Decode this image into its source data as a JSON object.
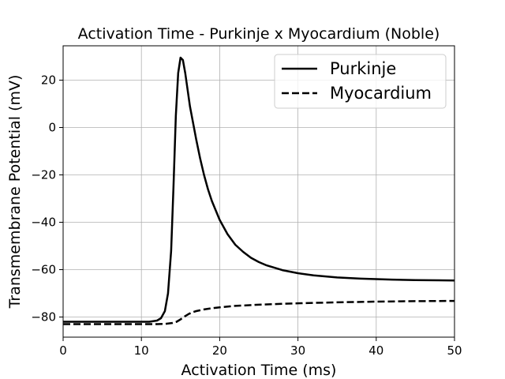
{
  "chart_data": {
    "type": "line",
    "title": "Activation Time - Purkinje x Myocardium (Noble)",
    "xlabel": "Activation Time (ms)",
    "ylabel": "Transmembrane Potential (mV)",
    "xlim": [
      0,
      50
    ],
    "ylim": [
      -88.5,
      34.5
    ],
    "xticks": [
      0,
      10,
      20,
      30,
      40,
      50
    ],
    "xtick_labels": [
      "0",
      "10",
      "20",
      "30",
      "40",
      "50"
    ],
    "yticks": [
      -80,
      -60,
      -40,
      -20,
      0,
      20
    ],
    "ytick_labels": [
      "−80",
      "−60",
      "−40",
      "−20",
      "0",
      "20"
    ],
    "grid": true,
    "legend_position": "top-right",
    "series": [
      {
        "name": "Purkinje",
        "linestyle": "solid",
        "color": "#000000",
        "x": [
          0,
          5,
          10,
          11,
          12,
          12.5,
          13,
          13.4,
          13.8,
          14.1,
          14.4,
          14.7,
          15.0,
          15.3,
          15.6,
          15.9,
          16.2,
          16.6,
          17.0,
          17.5,
          18.0,
          18.5,
          19.0,
          19.5,
          20,
          21,
          22,
          23,
          24,
          25,
          26,
          28,
          30,
          32,
          35,
          38,
          40,
          42,
          45,
          48,
          50
        ],
        "y": [
          -82,
          -82,
          -82,
          -82,
          -81.5,
          -80.5,
          -77.5,
          -70,
          -52,
          -25,
          5,
          23,
          29.5,
          28.5,
          23,
          16,
          9,
          2,
          -5,
          -13,
          -20,
          -26,
          -31,
          -35,
          -39,
          -45,
          -49.5,
          -52.5,
          -55,
          -56.8,
          -58.2,
          -60.2,
          -61.5,
          -62.4,
          -63.3,
          -63.8,
          -64.0,
          -64.2,
          -64.4,
          -64.5,
          -64.6
        ]
      },
      {
        "name": "Myocardium",
        "linestyle": "dashed",
        "color": "#000000",
        "x": [
          0,
          5,
          10,
          12,
          13,
          14,
          14.5,
          15,
          15.5,
          16,
          16.5,
          17,
          18,
          19,
          20,
          22,
          25,
          28,
          30,
          35,
          40,
          45,
          50
        ],
        "y": [
          -83,
          -83,
          -83,
          -83,
          -82.9,
          -82.5,
          -82,
          -81,
          -79.8,
          -78.8,
          -78,
          -77.5,
          -76.8,
          -76.3,
          -75.9,
          -75.3,
          -74.8,
          -74.4,
          -74.2,
          -73.8,
          -73.5,
          -73.3,
          -73.2
        ]
      }
    ]
  }
}
